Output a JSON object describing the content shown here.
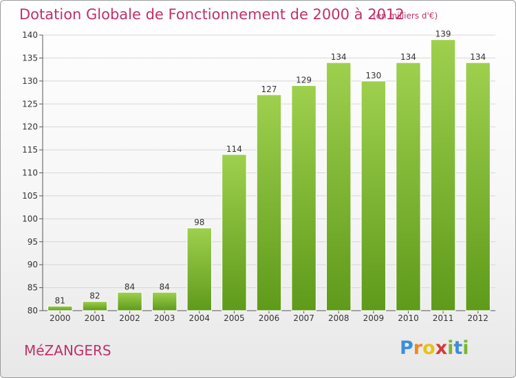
{
  "header": {
    "title": "Dotation Globale de Fonctionnement de 2000 à 2012",
    "unit": "(en milliers d'€)"
  },
  "footer": {
    "commune": "MéZANGERS",
    "logo_letters": [
      "P",
      "r",
      "o",
      "x",
      "i",
      "t",
      "i"
    ]
  },
  "colors": {
    "accent": "#c0306a",
    "bar_light": "#9ed04e",
    "bar_dark": "#5f9a1a"
  },
  "chart_data": {
    "type": "bar",
    "categories": [
      "2000",
      "2001",
      "2002",
      "2003",
      "2004",
      "2005",
      "2006",
      "2007",
      "2008",
      "2009",
      "2010",
      "2011",
      "2012"
    ],
    "values": [
      81,
      82,
      84,
      84,
      98,
      114,
      127,
      129,
      134,
      130,
      134,
      139,
      134
    ],
    "title": "Dotation Globale de Fonctionnement de 2000 à 2012",
    "subtitle": "(en milliers d'€)",
    "xlabel": "",
    "ylabel": "",
    "ylim": [
      80,
      140
    ],
    "yticks": [
      80,
      85,
      90,
      95,
      100,
      105,
      110,
      115,
      120,
      125,
      130,
      135,
      140
    ],
    "grid": true,
    "data_labels": true
  }
}
